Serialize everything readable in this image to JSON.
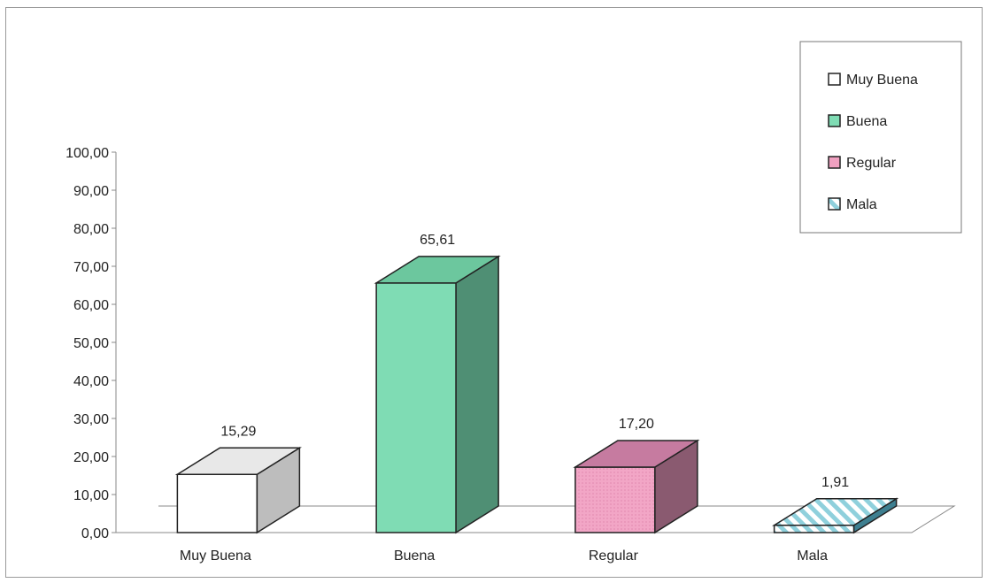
{
  "chart_data": {
    "type": "bar",
    "categories": [
      "Muy Buena",
      "Buena",
      "Regular",
      "Mala"
    ],
    "values": [
      15.29,
      65.61,
      17.2,
      1.91
    ],
    "value_labels": [
      "15,29",
      "65,61",
      "17,20",
      "1,91"
    ],
    "ylim": [
      0,
      100
    ],
    "yticks": [
      "0,00",
      "10,00",
      "20,00",
      "30,00",
      "40,00",
      "50,00",
      "60,00",
      "70,00",
      "80,00",
      "90,00",
      "100,00"
    ],
    "legend": [
      "Muy Buena",
      "Buena",
      "Regular",
      "Mala"
    ],
    "legend_position": "top-right",
    "three_d": true,
    "colors": [
      "#ffffff",
      "#7fdcb4",
      "#f0a0c0",
      "#c8ecef"
    ],
    "grid": false
  }
}
